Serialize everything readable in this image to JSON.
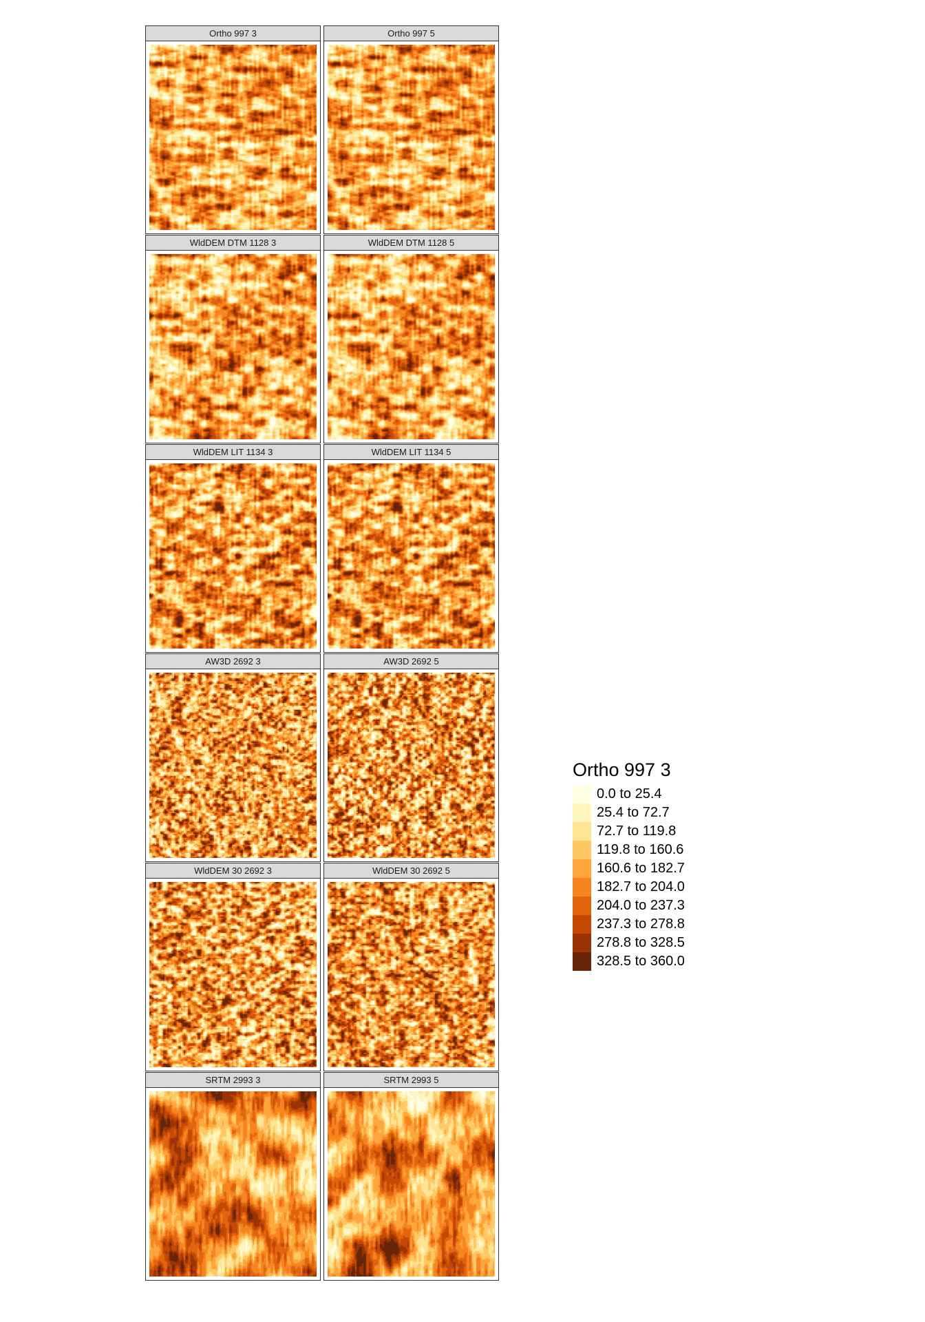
{
  "panels": [
    {
      "title": "Ortho 997 3",
      "style": "ortho",
      "seed": 11
    },
    {
      "title": "Ortho 997 5",
      "style": "ortho",
      "seed": 11
    },
    {
      "title": "WldDEM DTM 1128 3",
      "style": "dtm",
      "seed": 23
    },
    {
      "title": "WldDEM DTM 1128 5",
      "style": "dtm",
      "seed": 23
    },
    {
      "title": "WldDEM LIT 1134 3",
      "style": "lit",
      "seed": 37
    },
    {
      "title": "WldDEM LIT 1134 5",
      "style": "lit",
      "seed": 37
    },
    {
      "title": "AW3D 2692 3",
      "style": "aw3d",
      "seed": 41
    },
    {
      "title": "AW3D 2692 5",
      "style": "aw3d",
      "seed": 43
    },
    {
      "title": "WldDEM 30 2692 3",
      "style": "wd30",
      "seed": 53
    },
    {
      "title": "WldDEM 30 2692 5",
      "style": "wd30",
      "seed": 57
    },
    {
      "title": "SRTM 2993 3",
      "style": "srtm",
      "seed": 61
    },
    {
      "title": "SRTM 2993 5",
      "style": "srtm",
      "seed": 67
    }
  ],
  "legend": {
    "title": "Ortho 997 3",
    "classes": [
      {
        "label": "0.0 to 25.4",
        "color": "#ffffe5"
      },
      {
        "label": "25.4 to 72.7",
        "color": "#fff5bf"
      },
      {
        "label": "72.7 to 119.8",
        "color": "#fee595"
      },
      {
        "label": "119.8 to 160.6",
        "color": "#fec965"
      },
      {
        "label": "160.6 to 182.7",
        "color": "#fea63c"
      },
      {
        "label": "182.7 to 204.0",
        "color": "#f6841f"
      },
      {
        "label": "204.0 to 237.3",
        "color": "#e2640e"
      },
      {
        "label": "237.3 to 278.8",
        "color": "#c44903"
      },
      {
        "label": "278.8 to 328.5",
        "color": "#9b3404"
      },
      {
        "label": "328.5 to 360.0",
        "color": "#662506"
      }
    ]
  }
}
